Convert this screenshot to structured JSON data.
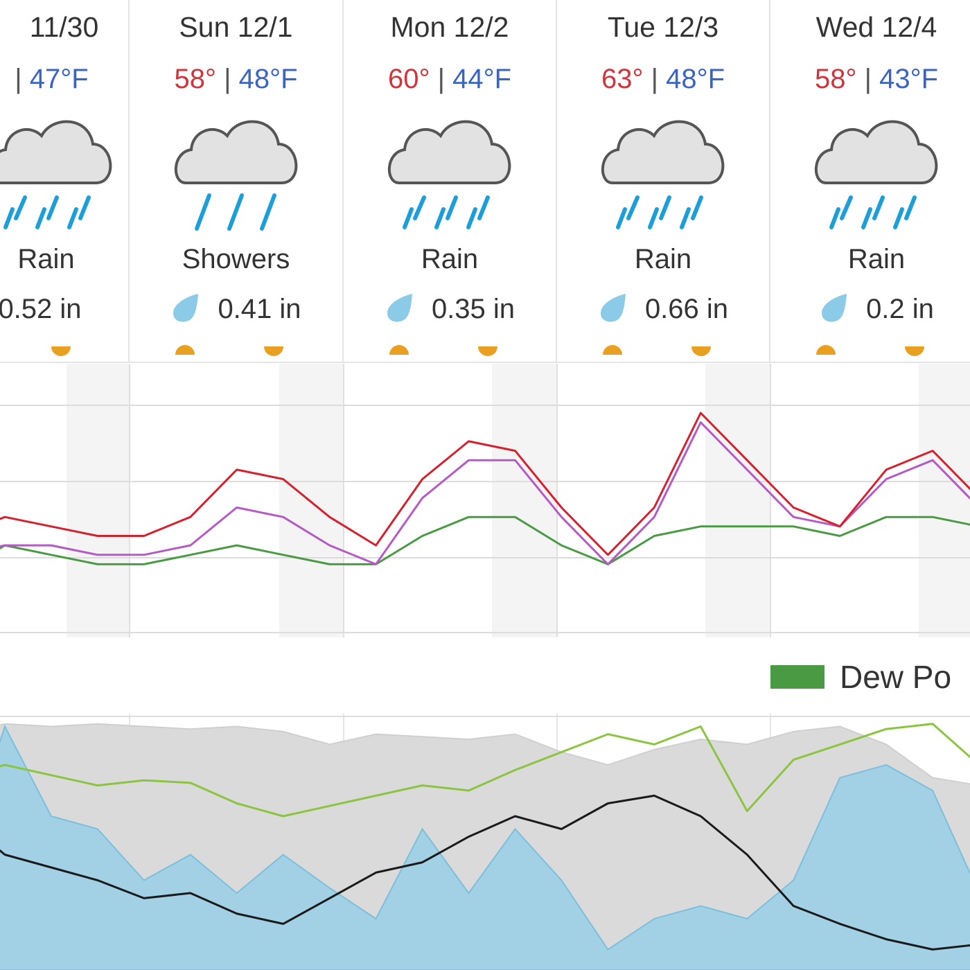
{
  "colors": {
    "high_temp": "#d0343c",
    "low_temp": "#3a64c4",
    "temperature_line": "#d6202e",
    "feels_like_line": "#b55ac4",
    "dew_point_line": "#4a9a44",
    "rain_icon": "#1c9fd8",
    "drop_icon": "#8ccbe8",
    "cloud_fill": "#e2e2e2",
    "sun_marker": "#e9a020",
    "precip_area": "#9fd0e6",
    "cloud_cover_area": "#dadada",
    "humidity_line": "#8bc43f",
    "wind_line": "#1a1a1a"
  },
  "forecast": {
    "days": [
      {
        "date": "11/30",
        "high": "",
        "low": "47°F",
        "condition": "Rain",
        "precip": "0.52 in",
        "icon": "rain-cloud-icon"
      },
      {
        "date": "Sun 12/1",
        "high": "58°",
        "low": "48°F",
        "condition": "Showers",
        "precip": "0.41 in",
        "icon": "showers-cloud-icon"
      },
      {
        "date": "Mon 12/2",
        "high": "60°",
        "low": "44°F",
        "condition": "Rain",
        "precip": "0.35 in",
        "icon": "rain-cloud-icon"
      },
      {
        "date": "Tue 12/3",
        "high": "63°",
        "low": "48°F",
        "condition": "Rain",
        "precip": "0.66 in",
        "icon": "rain-cloud-icon"
      },
      {
        "date": "Wed 12/4",
        "high": "58°",
        "low": "43°F",
        "condition": "Rain",
        "precip": "0.2 in",
        "icon": "rain-cloud-icon"
      }
    ]
  },
  "legend": {
    "dew_point_label": "Dew Po"
  },
  "chart_data": [
    {
      "type": "line",
      "description_of_axes": "",
      "x": [
        0,
        6,
        12,
        18,
        24,
        30,
        36,
        42,
        48,
        54,
        60,
        66,
        72,
        78,
        84,
        90,
        96,
        102,
        108,
        114,
        120,
        126,
        132,
        138
      ],
      "series": [
        {
          "name": "",
          "color_key": "temperature_line",
          "values": [
            50,
            52,
            51,
            50,
            50,
            52,
            57,
            56,
            52,
            49,
            56,
            60,
            59,
            53,
            48,
            53,
            63,
            58,
            53,
            51,
            57,
            59,
            54,
            51
          ]
        },
        {
          "name": "",
          "color_key": "feels_like_line",
          "values": [
            48,
            49,
            49,
            48,
            48,
            49,
            53,
            52,
            49,
            47,
            54,
            58,
            58,
            52,
            47,
            52,
            62,
            57,
            52,
            51,
            56,
            58,
            53,
            51
          ]
        },
        {
          "name": "Dew Point",
          "color_key": "dew_point_line",
          "values": [
            46,
            49,
            48,
            47,
            47,
            48,
            49,
            48,
            47,
            47,
            50,
            52,
            52,
            49,
            47,
            50,
            51,
            51,
            51,
            50,
            52,
            52,
            51,
            50
          ]
        }
      ]
    },
    {
      "type": "area",
      "x": [
        0,
        6,
        12,
        18,
        24,
        30,
        36,
        42,
        48,
        54,
        60,
        66,
        72,
        78,
        84,
        90,
        96,
        102,
        108,
        114,
        120,
        126,
        132,
        138
      ],
      "series": [
        {
          "name": "",
          "color_key": "cloud_cover_area",
          "values": [
            92,
            96,
            95,
            96,
            95,
            94,
            95,
            93,
            88,
            92,
            91,
            90,
            92,
            85,
            80,
            86,
            90,
            88,
            93,
            95,
            88,
            75,
            72,
            70
          ]
        },
        {
          "name": "",
          "color_key": "precip_area",
          "values": [
            40,
            95,
            60,
            55,
            35,
            45,
            30,
            45,
            32,
            20,
            55,
            30,
            55,
            35,
            8,
            20,
            25,
            20,
            35,
            75,
            80,
            70,
            30,
            5
          ]
        },
        {
          "name": "",
          "color_key": "humidity_line",
          "values": [
            75,
            80,
            76,
            72,
            74,
            73,
            65,
            60,
            64,
            68,
            72,
            70,
            78,
            85,
            92,
            88,
            95,
            62,
            82,
            88,
            94,
            96,
            80,
            95
          ]
        },
        {
          "name": "",
          "color_key": "wind_line",
          "values": [
            60,
            45,
            40,
            35,
            28,
            30,
            22,
            18,
            28,
            38,
            42,
            52,
            60,
            55,
            65,
            68,
            60,
            45,
            25,
            18,
            12,
            8,
            10,
            28
          ]
        }
      ]
    }
  ]
}
